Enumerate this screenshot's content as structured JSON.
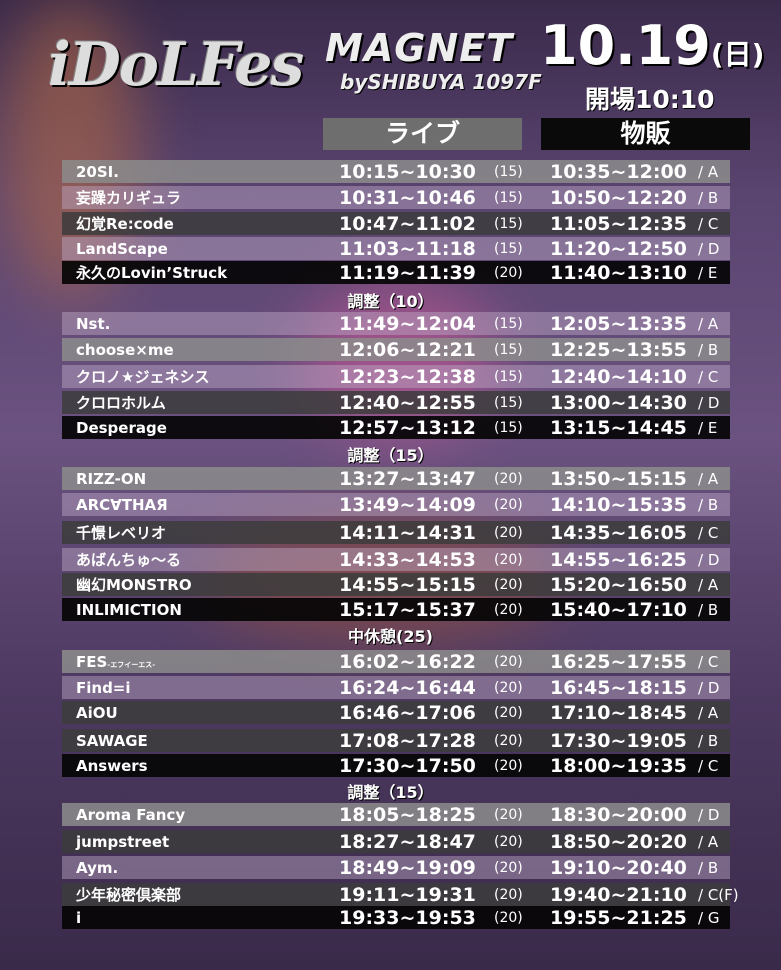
{
  "header": {
    "logo": "iDoLFes",
    "venue": "MAGNET",
    "venue_sub": "bySHIBUYA 1097F",
    "date": "10.19",
    "weekday": "(日)",
    "open": "開場10:10"
  },
  "columns": {
    "live": "ライブ",
    "merch": "物販"
  },
  "rows": [
    {
      "name": "20SI.",
      "live": "10:15~10:30",
      "dur": "(15)",
      "merch": "10:35~12:00",
      "slot": "/ A"
    },
    {
      "name": "妄躁カリギュラ",
      "live": "10:31~10:46",
      "dur": "(15)",
      "merch": "10:50~12:20",
      "slot": "/ B"
    },
    {
      "name": "幻覚Re:code",
      "live": "10:47~11:02",
      "dur": "(15)",
      "merch": "11:05~12:35",
      "slot": "/ C"
    },
    {
      "name": "LandScape",
      "live": "11:03~11:18",
      "dur": "(15)",
      "merch": "11:20~12:50",
      "slot": "/ D"
    },
    {
      "name": "永久のLovin’Struck",
      "live": "11:19~11:39",
      "dur": "(20)",
      "merch": "11:40~13:10",
      "slot": "/ E"
    },
    {
      "name": "Nst.",
      "live": "11:49~12:04",
      "dur": "(15)",
      "merch": "12:05~13:35",
      "slot": "/ A"
    },
    {
      "name": "choose×me",
      "live": "12:06~12:21",
      "dur": "(15)",
      "merch": "12:25~13:55",
      "slot": "/ B"
    },
    {
      "name": "クロノ★ジェネシス",
      "live": "12:23~12:38",
      "dur": "(15)",
      "merch": "12:40~14:10",
      "slot": "/ C"
    },
    {
      "name": "クロロホルム",
      "live": "12:40~12:55",
      "dur": "(15)",
      "merch": "13:00~14:30",
      "slot": "/ D"
    },
    {
      "name": "Desperage",
      "live": "12:57~13:12",
      "dur": "(15)",
      "merch": "13:15~14:45",
      "slot": "/ E"
    },
    {
      "name": "RIZZ-ON",
      "live": "13:27~13:47",
      "dur": "(20)",
      "merch": "13:50~15:15",
      "slot": "/ A"
    },
    {
      "name": "ARC∀THAЯ",
      "live": "13:49~14:09",
      "dur": "(20)",
      "merch": "14:10~15:35",
      "slot": "/ B"
    },
    {
      "name": "千憬レベリオ",
      "live": "14:11~14:31",
      "dur": "(20)",
      "merch": "14:35~16:05",
      "slot": "/ C"
    },
    {
      "name": "あばんちゅ～る",
      "live": "14:33~14:53",
      "dur": "(20)",
      "merch": "14:55~16:25",
      "slot": "/ D"
    },
    {
      "name": "幽幻MONSTRO",
      "live": "14:55~15:15",
      "dur": "(20)",
      "merch": "15:20~16:50",
      "slot": "/ A"
    },
    {
      "name": "INLIMICTION",
      "live": "15:17~15:37",
      "dur": "(20)",
      "merch": "15:40~17:10",
      "slot": "/ B"
    },
    {
      "name": "FES",
      "sub": "-エフイーエス-",
      "live": "16:02~16:22",
      "dur": "(20)",
      "merch": "16:25~17:55",
      "slot": "/ C"
    },
    {
      "name": "Find=i",
      "live": "16:24~16:44",
      "dur": "(20)",
      "merch": "16:45~18:15",
      "slot": "/ D"
    },
    {
      "name": "AiOU",
      "live": "16:46~17:06",
      "dur": "(20)",
      "merch": "17:10~18:45",
      "slot": "/ A"
    },
    {
      "name": "SAWAGE",
      "live": "17:08~17:28",
      "dur": "(20)",
      "merch": "17:30~19:05",
      "slot": "/ B"
    },
    {
      "name": "Answers",
      "live": "17:30~17:50",
      "dur": "(20)",
      "merch": "18:00~19:35",
      "slot": "/ C"
    },
    {
      "name": "Aroma Fancy",
      "live": "18:05~18:25",
      "dur": "(20)",
      "merch": "18:30~20:00",
      "slot": "/ D"
    },
    {
      "name": "jumpstreet",
      "live": "18:27~18:47",
      "dur": "(20)",
      "merch": "18:50~20:20",
      "slot": "/ A"
    },
    {
      "name": "Aym.",
      "live": "18:49~19:09",
      "dur": "(20)",
      "merch": "19:10~20:40",
      "slot": "/ B"
    },
    {
      "name": "少年秘密倶楽部",
      "live": "19:11~19:31",
      "dur": "(20)",
      "merch": "19:40~21:10",
      "slot": "/ C(F)"
    },
    {
      "name": "i",
      "live": "19:33~19:53",
      "dur": "(20)",
      "merch": "19:55~21:25",
      "slot": "/ G"
    }
  ],
  "breaks": [
    "調整（10）",
    "調整（15）",
    "中休憩(25)",
    "調整（15）"
  ],
  "colors": {
    "live_header": "#6e6e6e",
    "merch_header": "#0a0a0a",
    "background": "#5a4470"
  }
}
